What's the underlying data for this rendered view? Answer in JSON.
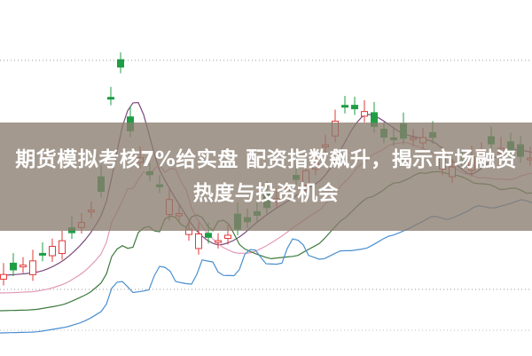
{
  "banner": {
    "title": "期货模拟考核7%给实盘 配资指数飙升，揭示市场融资热度与投资机会"
  }
}
